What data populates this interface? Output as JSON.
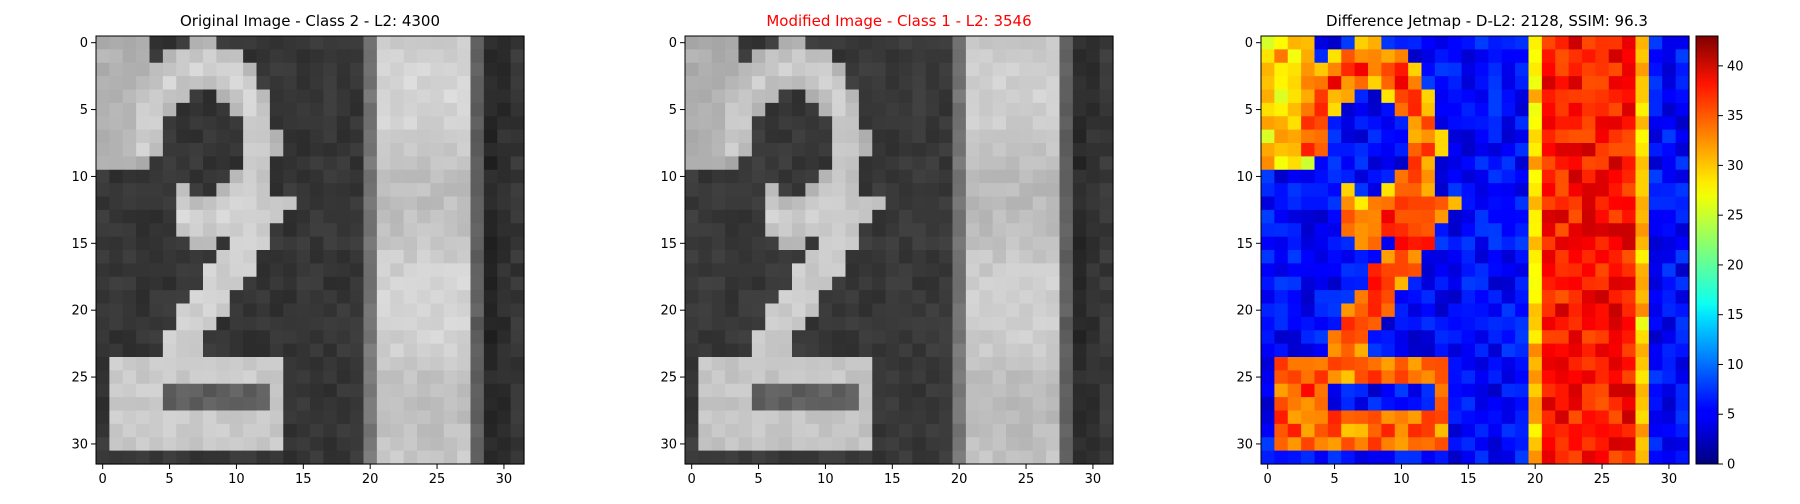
{
  "figure": {
    "panels": [
      {
        "title": "Original Image - Class 2 - L2: 4300",
        "title_color": "#000000"
      },
      {
        "title": "Modified Image - Class 1 - L2: 3546",
        "title_color": "#ff0000"
      },
      {
        "title": "Difference Jetmap - D-L2: 2128, SSIM: 96.3",
        "title_color": "#000000"
      }
    ],
    "axis_ticks": [
      "0",
      "5",
      "10",
      "15",
      "20",
      "25",
      "30"
    ],
    "colorbar_ticks": [
      "0",
      "5",
      "10",
      "15",
      "20",
      "25",
      "30",
      "35",
      "40"
    ]
  },
  "chart_data": [
    {
      "type": "heatmap",
      "title": "Original Image - Class 2 - L2: 4300",
      "colormap": "gray",
      "grid_size": [
        32,
        32
      ],
      "xlim": [
        -0.5,
        31.5
      ],
      "ylim": [
        31.5,
        -0.5
      ],
      "xticks": [
        0,
        5,
        10,
        15,
        20,
        25,
        30
      ],
      "yticks": [
        0,
        5,
        10,
        15,
        20,
        25,
        30
      ],
      "content": "handwritten digit 2 on left, vertical light bar at columns 21-27"
    },
    {
      "type": "heatmap",
      "title": "Modified Image - Class 1 - L2: 3546",
      "colormap": "gray",
      "grid_size": [
        32,
        32
      ],
      "xlim": [
        -0.5,
        31.5
      ],
      "ylim": [
        31.5,
        -0.5
      ],
      "xticks": [
        0,
        5,
        10,
        15,
        20,
        25,
        30
      ],
      "yticks": [
        0,
        5,
        10,
        15,
        20,
        25,
        30
      ]
    },
    {
      "type": "heatmap",
      "title": "Difference Jetmap - D-L2: 2128, SSIM: 96.3",
      "colormap": "jet",
      "grid_size": [
        32,
        32
      ],
      "xlim": [
        -0.5,
        31.5
      ],
      "ylim": [
        31.5,
        -0.5
      ],
      "xticks": [
        0,
        5,
        10,
        15,
        20,
        25,
        30
      ],
      "yticks": [
        0,
        5,
        10,
        15,
        20,
        25,
        30
      ],
      "colorbar": {
        "range": [
          0,
          43
        ],
        "ticks": [
          0,
          5,
          10,
          15,
          20,
          25,
          30,
          35,
          40
        ]
      }
    }
  ]
}
